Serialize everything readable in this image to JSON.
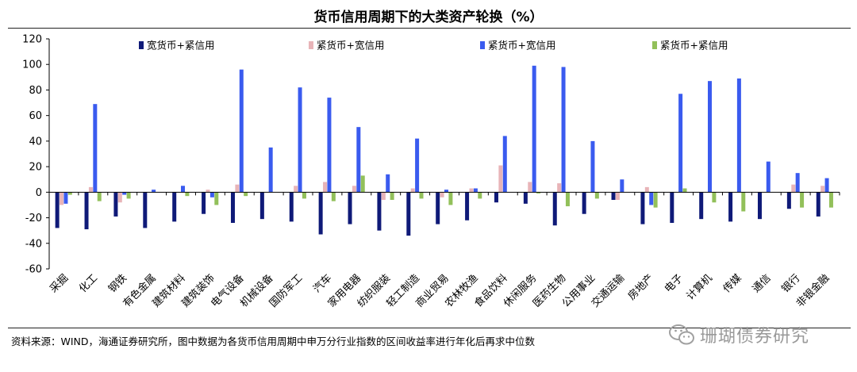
{
  "title": "货币信用周期下的大类资产轮换（%）",
  "source": "资料来源：WIND，海通证券研究所，图中数据为各货币信用周期中申万分行业指数的区间收益率进行年化后再求中位数",
  "watermark": {
    "text": "珊瑚债券研究",
    "icon": "wechat-icon"
  },
  "chart_data": {
    "type": "bar",
    "title": "货币信用周期下的大类资产轮换（%）",
    "xlabel": "",
    "ylabel": "",
    "ylim": [
      -60,
      120
    ],
    "yticks": [
      -60,
      -40,
      -20,
      0,
      20,
      40,
      60,
      80,
      100,
      120
    ],
    "grid": false,
    "legend_position": "top",
    "categories": [
      "采掘",
      "化工",
      "钢铁",
      "有色金属",
      "建筑材料",
      "建筑装饰",
      "电气设备",
      "机械设备",
      "国防军工",
      "汽车",
      "家用电器",
      "纺织服装",
      "轻工制造",
      "商业贸易",
      "农林牧渔",
      "食品饮料",
      "休闲服务",
      "医药生物",
      "公用事业",
      "交通运输",
      "房地产",
      "电子",
      "计算机",
      "传媒",
      "通信",
      "银行",
      "非银金融"
    ],
    "series": [
      {
        "name": "宽货币+紧信用",
        "color": "#0f1a78",
        "values": [
          -28,
          -29,
          -19,
          -28,
          -23,
          -17,
          -24,
          -21,
          -23,
          -33,
          -25,
          -30,
          -34,
          -25,
          -22,
          -8,
          -9,
          -26,
          -17,
          -6,
          -25,
          -24,
          -21,
          -23,
          -21,
          -13,
          -19
        ]
      },
      {
        "name": "紧货币+宽信用",
        "color": "#e8b4b8",
        "values": [
          -10,
          4,
          -8,
          0,
          0,
          2,
          6,
          0,
          5,
          8,
          5,
          -6,
          3,
          -4,
          3,
          21,
          8,
          7,
          0,
          -6,
          4,
          0,
          0,
          0,
          0,
          6,
          5
        ]
      },
      {
        "name": "紧货币+宽信用",
        "color": "#3a5bef",
        "values": [
          -9,
          69,
          -2,
          2,
          5,
          -4,
          96,
          35,
          82,
          74,
          51,
          14,
          42,
          2,
          3,
          44,
          99,
          98,
          40,
          10,
          -10,
          77,
          87,
          89,
          24,
          15,
          11
        ]
      },
      {
        "name": "紧货币+紧信用",
        "color": "#92c05a",
        "values": [
          -2,
          -7,
          -5,
          0,
          -3,
          -10,
          -3,
          0,
          -5,
          -7,
          13,
          -6,
          -5,
          -10,
          -5,
          0,
          -1,
          -11,
          -5,
          0,
          -12,
          3,
          -8,
          -15,
          0,
          -12,
          -12
        ]
      }
    ]
  }
}
